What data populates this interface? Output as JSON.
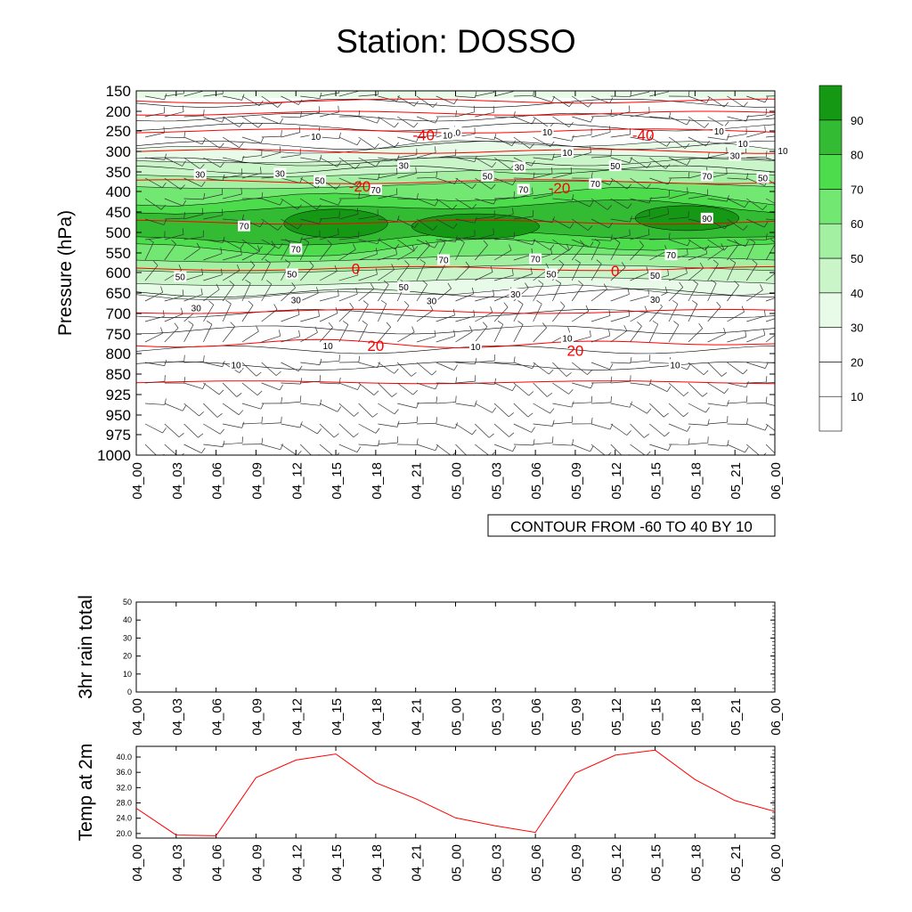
{
  "title": "Station: DOSSO",
  "time_labels": [
    "04_00",
    "04_03",
    "04_06",
    "04_09",
    "04_12",
    "04_15",
    "04_18",
    "04_21",
    "05_00",
    "05_03",
    "05_06",
    "05_09",
    "05_12",
    "05_15",
    "05_18",
    "05_21",
    "06_00"
  ],
  "colors": {
    "temp_line": "#ff0000",
    "contour_line": "#000000",
    "fill_levels": [
      "#ffffff",
      "#ffffff",
      "#ffffff",
      "#e8fbe8",
      "#c9f5c9",
      "#a3f0a3",
      "#72e872",
      "#4cdc4c",
      "#33bb33",
      "#159915"
    ]
  },
  "chart_data": [
    {
      "type": "heatmap",
      "name": "sounding",
      "ylabel": "Pressure (hPa)",
      "y_ticks": [
        150,
        200,
        250,
        300,
        350,
        400,
        450,
        500,
        550,
        600,
        650,
        700,
        750,
        800,
        850,
        925,
        950,
        975,
        1000
      ],
      "x_categories": [
        "04_00",
        "04_03",
        "04_06",
        "04_09",
        "04_12",
        "04_15",
        "04_18",
        "04_21",
        "05_00",
        "05_03",
        "05_06",
        "05_09",
        "05_12",
        "05_15",
        "05_18",
        "05_21",
        "06_00"
      ],
      "caption": "CONTOUR FROM -60 TO 40 BY 10",
      "colorbar": {
        "levels": [
          10,
          20,
          30,
          40,
          50,
          60,
          70,
          80,
          90
        ],
        "labels": [
          "10",
          "20",
          "30",
          "40",
          "50",
          "60",
          "70",
          "80",
          "90"
        ]
      },
      "humidity_contour_labels": [
        {
          "text": "10",
          "t": 8.0,
          "p": 253
        },
        {
          "text": "10",
          "t": 4.5,
          "p": 263
        },
        {
          "text": "10",
          "t": 7.8,
          "p": 260
        },
        {
          "text": "10",
          "t": 10.3,
          "p": 252
        },
        {
          "text": "10",
          "t": 14.6,
          "p": 250
        },
        {
          "text": "10",
          "t": 10.8,
          "p": 302
        },
        {
          "text": "10",
          "t": 15.2,
          "p": 280
        },
        {
          "text": "10",
          "t": 16.2,
          "p": 298
        },
        {
          "text": "30",
          "t": 1.6,
          "p": 356
        },
        {
          "text": "30",
          "t": 3.6,
          "p": 353
        },
        {
          "text": "30",
          "t": 6.7,
          "p": 334
        },
        {
          "text": "30",
          "t": 9.6,
          "p": 338
        },
        {
          "text": "30",
          "t": 15.0,
          "p": 310
        },
        {
          "text": "50",
          "t": 4.6,
          "p": 372
        },
        {
          "text": "50",
          "t": 8.8,
          "p": 360
        },
        {
          "text": "50",
          "t": 12.0,
          "p": 335
        },
        {
          "text": "50",
          "t": 15.7,
          "p": 365
        },
        {
          "text": "70",
          "t": 2.7,
          "p": 484
        },
        {
          "text": "70",
          "t": 6.0,
          "p": 395
        },
        {
          "text": "70",
          "t": 9.7,
          "p": 394
        },
        {
          "text": "70",
          "t": 11.5,
          "p": 380
        },
        {
          "text": "70",
          "t": 14.3,
          "p": 360
        },
        {
          "text": "90",
          "t": 14.3,
          "p": 465
        },
        {
          "text": "70",
          "t": 4.0,
          "p": 540
        },
        {
          "text": "70",
          "t": 7.7,
          "p": 567
        },
        {
          "text": "70",
          "t": 10.0,
          "p": 565
        },
        {
          "text": "70",
          "t": 13.4,
          "p": 555
        },
        {
          "text": "50",
          "t": 1.1,
          "p": 610
        },
        {
          "text": "50",
          "t": 3.9,
          "p": 603
        },
        {
          "text": "50",
          "t": 6.7,
          "p": 635
        },
        {
          "text": "50",
          "t": 10.4,
          "p": 603
        },
        {
          "text": "50",
          "t": 13.0,
          "p": 607
        },
        {
          "text": "30",
          "t": 1.5,
          "p": 686
        },
        {
          "text": "30",
          "t": 4.0,
          "p": 666
        },
        {
          "text": "30",
          "t": 7.4,
          "p": 668
        },
        {
          "text": "30",
          "t": 9.5,
          "p": 652
        },
        {
          "text": "30",
          "t": 13.0,
          "p": 665
        },
        {
          "text": "10",
          "t": 4.8,
          "p": 780
        },
        {
          "text": "10",
          "t": 2.5,
          "p": 827
        },
        {
          "text": "10",
          "t": 8.5,
          "p": 782
        },
        {
          "text": "10",
          "t": 10.8,
          "p": 760
        },
        {
          "text": "10",
          "t": 13.5,
          "p": 827
        }
      ],
      "temperature_contour_labels": [
        {
          "text": "-40",
          "t": 7.2,
          "p": 260
        },
        {
          "text": "-40",
          "t": 12.7,
          "p": 260
        },
        {
          "text": "-20",
          "t": 5.6,
          "p": 386
        },
        {
          "text": "-20",
          "t": 10.6,
          "p": 391
        },
        {
          "text": "0",
          "t": 5.5,
          "p": 590
        },
        {
          "text": "0",
          "t": 12.0,
          "p": 595
        },
        {
          "text": "20",
          "t": 6.0,
          "p": 780
        },
        {
          "text": "20",
          "t": 11.0,
          "p": 792
        }
      ]
    },
    {
      "type": "line",
      "name": "rain",
      "ylabel": "3hr rain total",
      "ylim": [
        0,
        50
      ],
      "y_ticks": [
        "0",
        "10",
        "20",
        "30",
        "40",
        "50"
      ],
      "x": [
        "04_00",
        "04_03",
        "04_06",
        "04_09",
        "04_12",
        "04_15",
        "04_18",
        "04_21",
        "05_00",
        "05_03",
        "05_06",
        "05_09",
        "05_12",
        "05_15",
        "05_18",
        "05_21",
        "06_00"
      ],
      "values": [
        0,
        0,
        0,
        0,
        0,
        0,
        0,
        0,
        0,
        0,
        0,
        0,
        0,
        0,
        0,
        0,
        0
      ]
    },
    {
      "type": "line",
      "name": "temperature",
      "ylabel": "Temp at 2m",
      "ylim": [
        18.8,
        42.8
      ],
      "y_ticks": [
        "20.0",
        "24.0",
        "28.0",
        "32.0",
        "36.0",
        "40.0"
      ],
      "x": [
        "04_00",
        "04_03",
        "04_06",
        "04_09",
        "04_12",
        "04_15",
        "04_18",
        "04_21",
        "05_00",
        "05_03",
        "05_06",
        "05_09",
        "05_12",
        "05_15",
        "05_18",
        "05_21",
        "06_00"
      ],
      "values": [
        26.6,
        19.6,
        19.4,
        34.6,
        39.2,
        40.8,
        33.3,
        29.1,
        24.1,
        22.0,
        20.3,
        35.8,
        40.5,
        41.8,
        34.1,
        28.6,
        25.8
      ]
    }
  ]
}
